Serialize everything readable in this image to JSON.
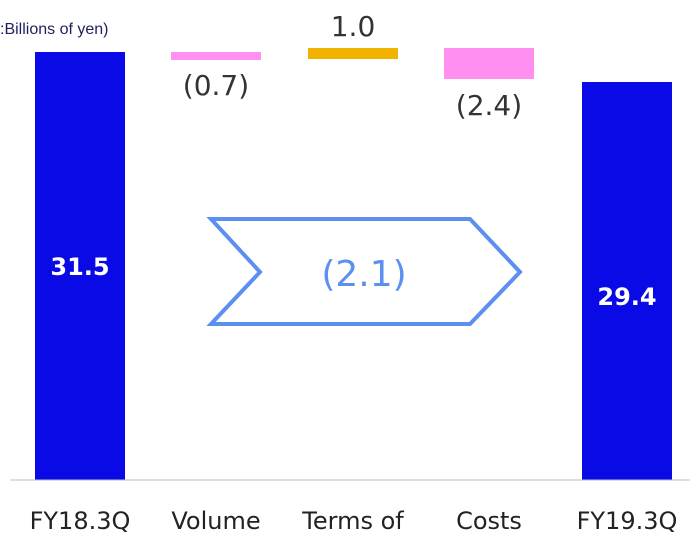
{
  "unit_label": ":Billions of yen)",
  "total_change_label": "(2.1)",
  "colors": {
    "total_bar": "#0a0ae6",
    "negative_bar": "#ff8ff0",
    "positive_bar": "#f2b200",
    "arrow": "#5b8ff0",
    "baseline": "#bfbfbf"
  },
  "chart_data": {
    "type": "bar",
    "subtype": "waterfall",
    "unit": "Billions of yen",
    "categories": [
      "FY18.3Q",
      "Volume",
      "Terms of",
      "Costs",
      "FY19.3Q"
    ],
    "values": [
      31.5,
      -0.7,
      1.0,
      -2.4,
      29.4
    ],
    "kinds": [
      "total",
      "delta",
      "delta",
      "delta",
      "total"
    ],
    "value_labels": [
      "31.5",
      "(0.7)",
      "1.0",
      "(2.4)",
      "29.4"
    ],
    "total_change": -2.1,
    "ylim": [
      0,
      31.5
    ]
  }
}
